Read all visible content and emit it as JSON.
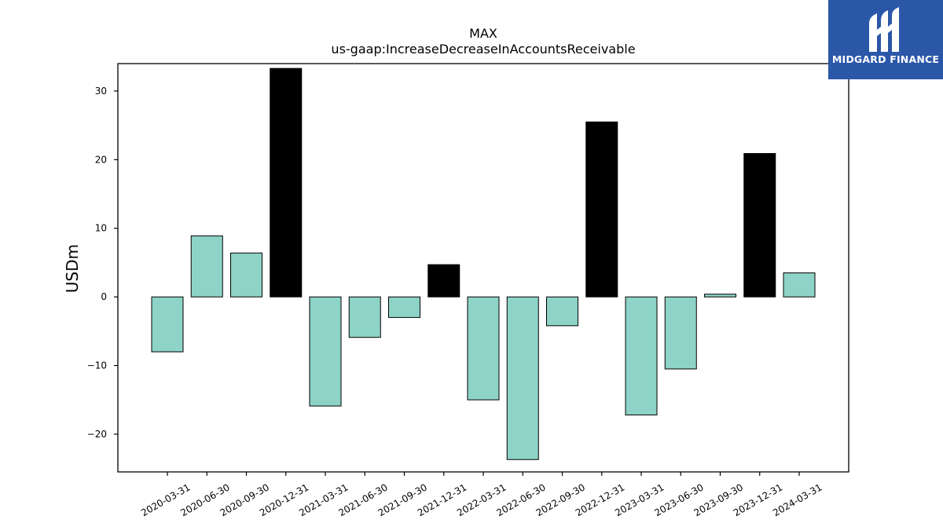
{
  "chart_data": {
    "type": "bar",
    "title": "MAX",
    "subtitle": "us-gaap:IncreaseDecreaseInAccountsReceivable",
    "xlabel": "",
    "ylabel": "USDm",
    "ylim": [
      -25.5,
      34
    ],
    "yticks": [
      -20,
      -10,
      0,
      10,
      20,
      30
    ],
    "ytick_labels": [
      "−20",
      "−10",
      "0",
      "10",
      "20",
      "30"
    ],
    "grid": false,
    "categories": [
      "2020-03-31",
      "2020-06-30",
      "2020-09-30",
      "2020-12-31",
      "2021-03-31",
      "2021-06-30",
      "2021-09-30",
      "2021-12-31",
      "2022-03-31",
      "2022-06-30",
      "2022-09-30",
      "2022-12-31",
      "2023-03-31",
      "2023-06-30",
      "2023-09-30",
      "2023-12-31",
      "2024-03-31"
    ],
    "values": [
      -8.0,
      8.9,
      6.4,
      33.3,
      -15.9,
      -5.9,
      -3.0,
      4.7,
      -15.0,
      -23.7,
      -4.2,
      25.5,
      -17.2,
      -10.5,
      0.4,
      20.9,
      3.5
    ],
    "highlight": [
      false,
      false,
      false,
      true,
      false,
      false,
      false,
      true,
      false,
      false,
      false,
      true,
      false,
      false,
      false,
      true,
      false
    ],
    "colors": {
      "normal": "#8dd3c7",
      "highlight": "#000000",
      "edge": "#000000"
    }
  },
  "logo": {
    "text": "MIDGARD FINANCE",
    "icon": "midgard-m-icon",
    "background": "#2b57a8"
  }
}
